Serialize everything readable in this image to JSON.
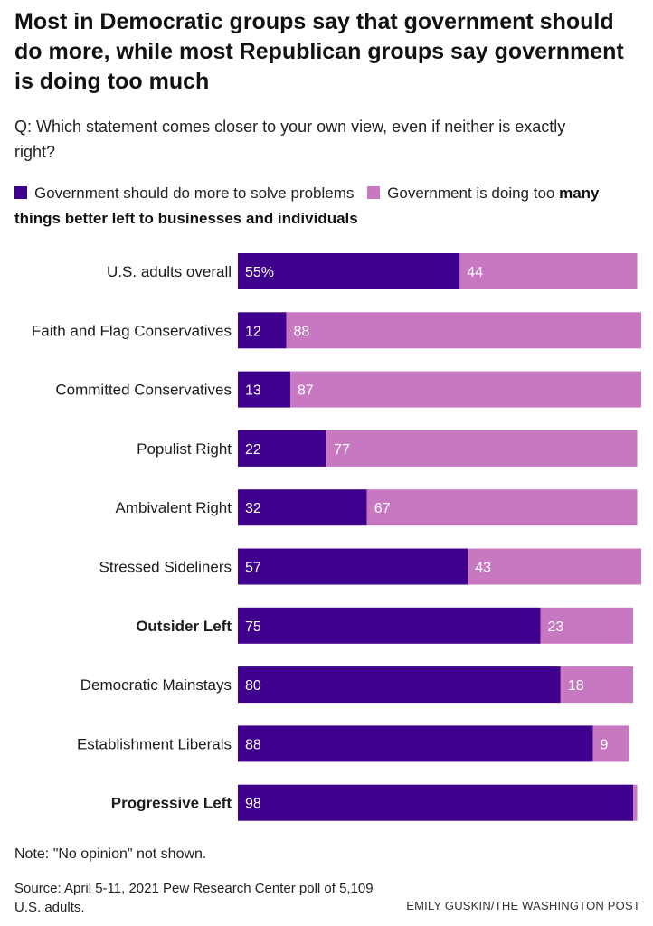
{
  "title": "Most in Democratic groups say that government should do more, while most Republican groups say government is doing too much",
  "question": "Q: Which statement comes closer to your own view, even if neither is exactly right?",
  "legend": {
    "item1": "Government should do more to solve problems",
    "item2_part1": "Government is doing too",
    "item2_part2": "many things better left to businesses and individuals"
  },
  "colors": {
    "do_more": "#3f008d",
    "doing_too_much": "#c878c0",
    "label_on_bar": "#ffffff"
  },
  "note": "Note: \"No opinion\" not shown.",
  "source": "Source: April 5-11, 2021 Pew Research Center poll of 5,109 U.S. adults.",
  "credit": "EMILY GUSKIN/THE WASHINGTON POST",
  "chart_data": {
    "type": "bar",
    "orientation": "horizontal",
    "stacked": true,
    "xlim": [
      0,
      100
    ],
    "categories": [
      "U.S. adults overall",
      "Faith and Flag Conservatives",
      "Committed Conservatives",
      "Populist Right",
      "Ambivalent Right",
      "Stressed Sideliners",
      "Outsider Left",
      "Democratic Mainstays",
      "Establishment Liberals",
      "Progressive Left"
    ],
    "bold_categories": [
      "Outsider Left",
      "Progressive Left"
    ],
    "series": [
      {
        "name": "Government should do more to solve problems",
        "values": [
          55,
          12,
          13,
          22,
          32,
          57,
          75,
          80,
          88,
          98
        ],
        "labels": [
          "55%",
          "12",
          "13",
          "22",
          "32",
          "57",
          "75",
          "80",
          "88",
          "98"
        ]
      },
      {
        "name": "Government is doing too many things better left to businesses and individuals",
        "values": [
          44,
          88,
          87,
          77,
          67,
          43,
          23,
          18,
          9,
          1
        ],
        "labels": [
          "44",
          "88",
          "87",
          "77",
          "67",
          "43",
          "23",
          "18",
          "9",
          ""
        ]
      }
    ]
  }
}
